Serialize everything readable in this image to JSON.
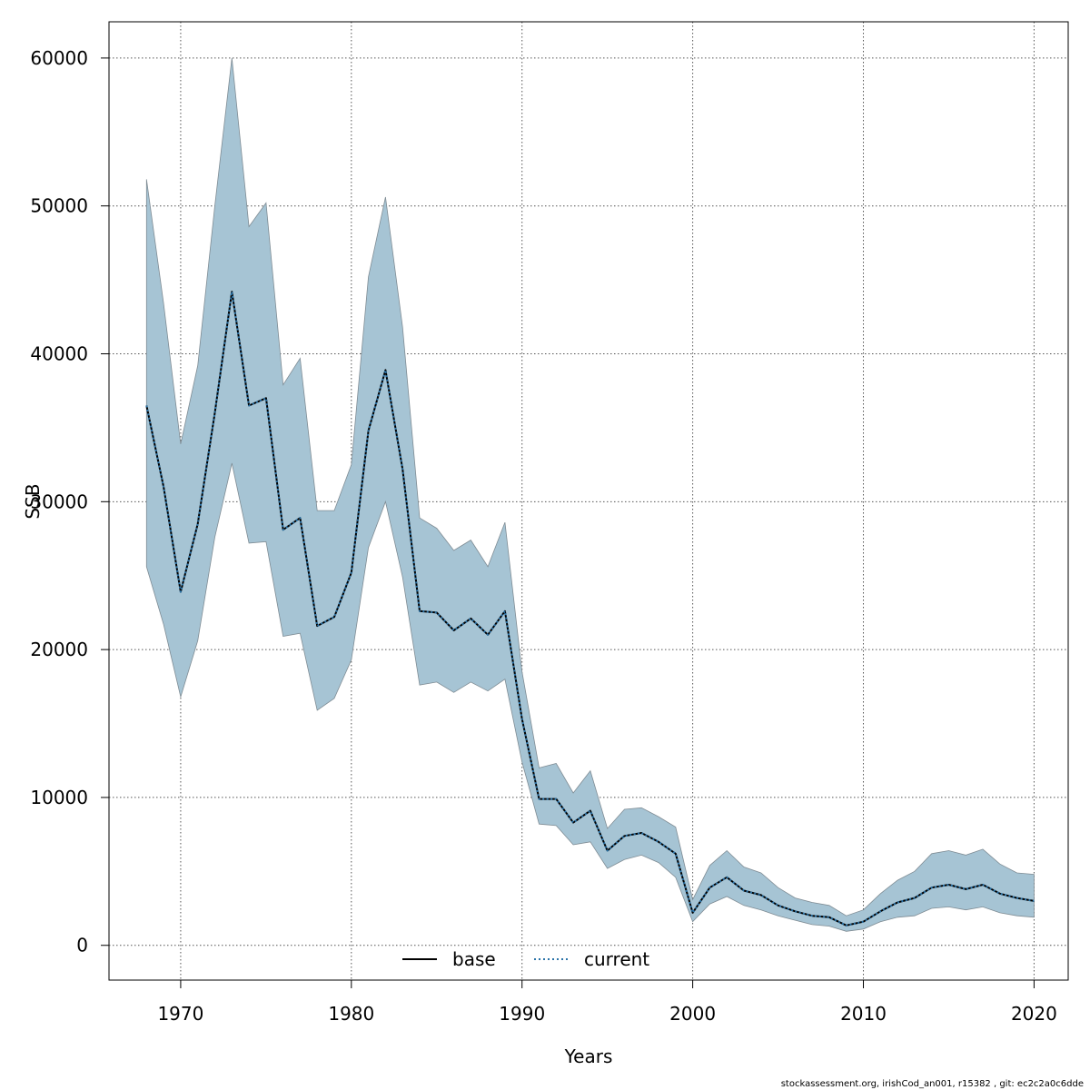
{
  "chart_data": {
    "type": "line",
    "xlabel": "Years",
    "ylabel": "SSB",
    "xlim": [
      1965.8,
      2022
    ],
    "ylim": [
      -2350,
      62450
    ],
    "xticks": [
      1970,
      1980,
      1990,
      2000,
      2010,
      2020
    ],
    "yticks": [
      0,
      10000,
      20000,
      30000,
      40000,
      50000,
      60000
    ],
    "grid": true,
    "legend_position": "bottom-center",
    "band_color": "#a6c4d4",
    "band_edge_color": "#7f8c94",
    "x": [
      1968,
      1969,
      1970,
      1971,
      1972,
      1973,
      1974,
      1975,
      1976,
      1977,
      1978,
      1979,
      1980,
      1981,
      1982,
      1983,
      1984,
      1985,
      1986,
      1987,
      1988,
      1989,
      1990,
      1991,
      1992,
      1993,
      1994,
      1995,
      1996,
      1997,
      1998,
      1999,
      2000,
      2001,
      2002,
      2003,
      2004,
      2005,
      2006,
      2007,
      2008,
      2009,
      2010,
      2011,
      2012,
      2013,
      2014,
      2015,
      2016,
      2017,
      2018,
      2019,
      2020
    ],
    "lower": [
      25600,
      21700,
      16800,
      20600,
      27600,
      32600,
      27200,
      27300,
      20900,
      21100,
      15900,
      16700,
      19300,
      26900,
      30000,
      24900,
      17600,
      17800,
      17100,
      17800,
      17200,
      18000,
      12400,
      8200,
      8100,
      6800,
      7000,
      5200,
      5800,
      6100,
      5600,
      4600,
      1600,
      2800,
      3300,
      2700,
      2400,
      2000,
      1700,
      1400,
      1300,
      950,
      1100,
      1600,
      1900,
      2000,
      2500,
      2600,
      2400,
      2600,
      2200,
      2000,
      1900
    ],
    "upper": [
      51800,
      43400,
      33900,
      39200,
      50000,
      60000,
      48600,
      50200,
      37900,
      39700,
      29400,
      29400,
      32500,
      45200,
      50600,
      41800,
      28900,
      28200,
      26700,
      27400,
      25600,
      28600,
      18500,
      12000,
      12300,
      10300,
      11800,
      7900,
      9200,
      9300,
      8700,
      8000,
      3100,
      5400,
      6400,
      5300,
      4900,
      3900,
      3200,
      2900,
      2700,
      2000,
      2400,
      3500,
      4400,
      5000,
      6200,
      6400,
      6100,
      6500,
      5500,
      4900,
      4800
    ],
    "series": [
      {
        "name": "base",
        "color": "#000000",
        "dash": "solid",
        "values": [
          36500,
          31000,
          23900,
          28500,
          36000,
          44200,
          36500,
          37000,
          28100,
          28900,
          21600,
          22200,
          25200,
          34800,
          38900,
          32200,
          22600,
          22500,
          21300,
          22100,
          21000,
          22600,
          15300,
          9900,
          9900,
          8300,
          9100,
          6400,
          7400,
          7600,
          7000,
          6200,
          2200,
          3900,
          4600,
          3700,
          3400,
          2700,
          2300,
          2000,
          1900,
          1350,
          1600,
          2300,
          2900,
          3200,
          3900,
          4100,
          3800,
          4100,
          3500,
          3200,
          3000
        ]
      },
      {
        "name": "current",
        "color": "#2a73a8",
        "dash": "dotted",
        "values": [
          36500,
          31000,
          23900,
          28500,
          36000,
          44200,
          36500,
          37000,
          28100,
          28900,
          21600,
          22200,
          25200,
          34800,
          38900,
          32200,
          22600,
          22500,
          21300,
          22100,
          21000,
          22600,
          15300,
          9900,
          9900,
          8300,
          9100,
          6400,
          7400,
          7600,
          7000,
          6200,
          2200,
          3900,
          4600,
          3700,
          3400,
          2700,
          2300,
          2000,
          1900,
          1350,
          1600,
          2300,
          2900,
          3200,
          3900,
          4100,
          3800,
          4100,
          3500,
          3200,
          3000
        ]
      }
    ]
  },
  "footer_text": "stockassessment.org, irishCod_an001, r15382 , git: ec2c2a0c6dde"
}
